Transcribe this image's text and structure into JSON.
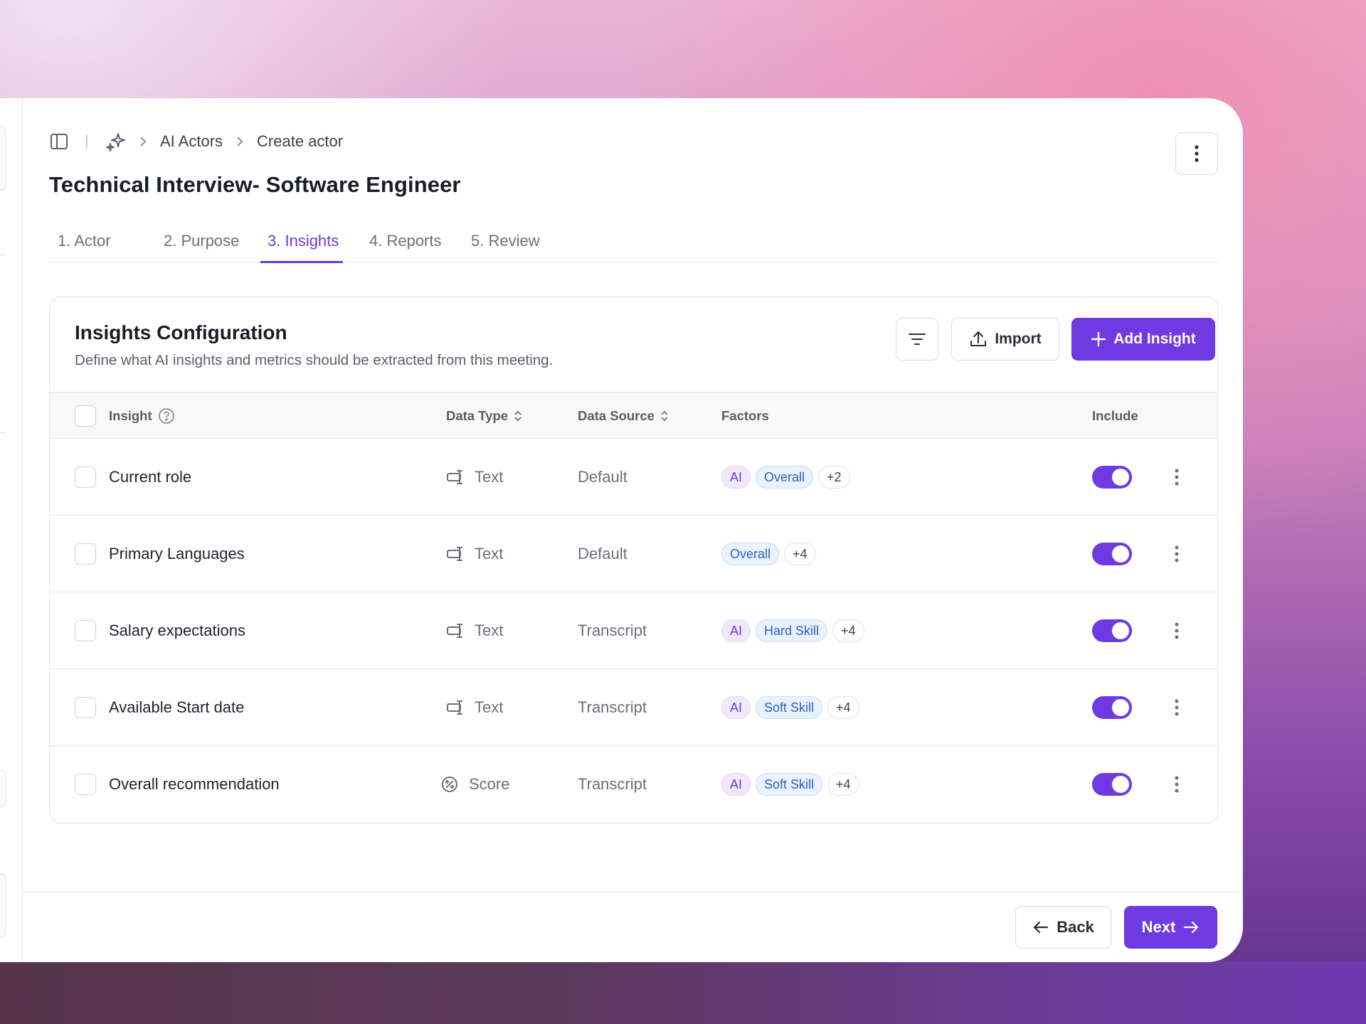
{
  "breadcrumb": {
    "items": [
      "AI Actors",
      "Create actor"
    ]
  },
  "page_title": "Technical Interview- Software Engineer",
  "tabs": [
    {
      "label": "1. Actor"
    },
    {
      "label": "2. Purpose"
    },
    {
      "label": "3. Insights",
      "active": true
    },
    {
      "label": "4. Reports"
    },
    {
      "label": "5. Review"
    }
  ],
  "card": {
    "title": "Insights Configuration",
    "description": "Define what AI insights and metrics should be extracted from this meeting.",
    "import_label": "Import",
    "add_label": "Add Insight"
  },
  "table": {
    "headers": {
      "insight": "Insight",
      "data_type": "Data Type",
      "data_source": "Data Source",
      "factors": "Factors",
      "include": "Include"
    },
    "rows": [
      {
        "name": "Current role",
        "type_icon": "text-field-icon",
        "type": "Text",
        "source": "Default",
        "chips": [
          {
            "label": "AI",
            "kind": "ai"
          },
          {
            "label": "Overall",
            "kind": "blue"
          },
          {
            "label": "+2",
            "kind": "more"
          }
        ],
        "include": true
      },
      {
        "name": "Primary Languages",
        "type_icon": "text-field-icon",
        "type": "Text",
        "source": "Default",
        "chips": [
          {
            "label": "Overall",
            "kind": "blue"
          },
          {
            "label": "+4",
            "kind": "more"
          }
        ],
        "include": true
      },
      {
        "name": "Salary expectations",
        "type_icon": "text-field-icon",
        "type": "Text",
        "source": "Transcript",
        "chips": [
          {
            "label": "AI",
            "kind": "ai"
          },
          {
            "label": "Hard Skill",
            "kind": "blue"
          },
          {
            "label": "+4",
            "kind": "more"
          }
        ],
        "include": true
      },
      {
        "name": "Available Start date",
        "type_icon": "text-field-icon",
        "type": "Text",
        "source": "Transcript",
        "chips": [
          {
            "label": "AI",
            "kind": "ai"
          },
          {
            "label": "Soft Skill",
            "kind": "blue"
          },
          {
            "label": "+4",
            "kind": "more"
          }
        ],
        "include": true
      },
      {
        "name": "Overall recommendation",
        "type_icon": "score-icon",
        "type": "Score",
        "source": "Transcript",
        "chips": [
          {
            "label": "AI",
            "kind": "ai"
          },
          {
            "label": "Soft Skill",
            "kind": "blue"
          },
          {
            "label": "+4",
            "kind": "more"
          }
        ],
        "include": true
      }
    ]
  },
  "footer": {
    "back_label": "Back",
    "next_label": "Next"
  },
  "colors": {
    "accent": "#6f3ae2"
  }
}
